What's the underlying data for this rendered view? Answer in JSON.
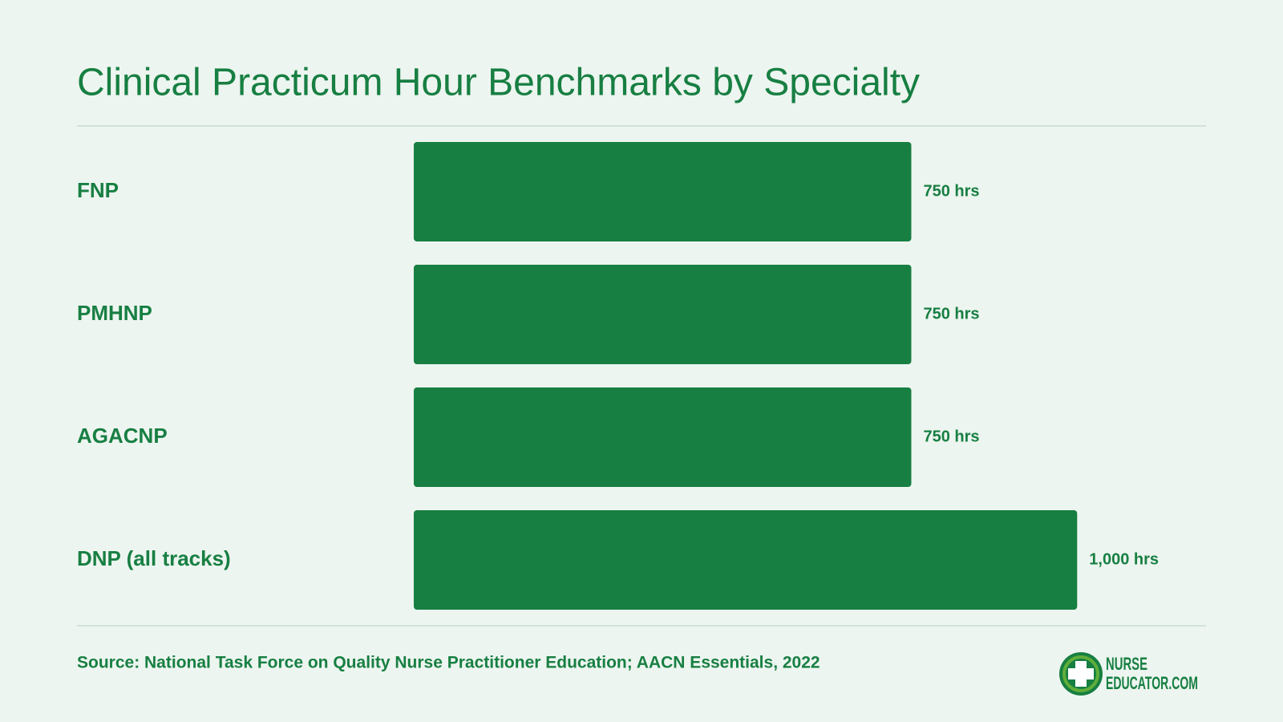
{
  "chart_data": {
    "type": "bar",
    "orientation": "horizontal",
    "title": "Clinical Practicum Hour Benchmarks by Specialty",
    "categories": [
      "FNP",
      "PMHNP",
      "AGACNP",
      "DNP (all tracks)"
    ],
    "values": [
      750,
      750,
      750,
      1000
    ],
    "value_labels": [
      "750 hrs",
      "750 hrs",
      "750 hrs",
      "1,000 hrs"
    ],
    "color": "#177f42",
    "source": "Source: National Task Force on Quality Nurse Practitioner Education; AACN Essentials, 2022",
    "logo": {
      "line1": "NURSE",
      "line2": "EDUCATOR.COM"
    }
  }
}
